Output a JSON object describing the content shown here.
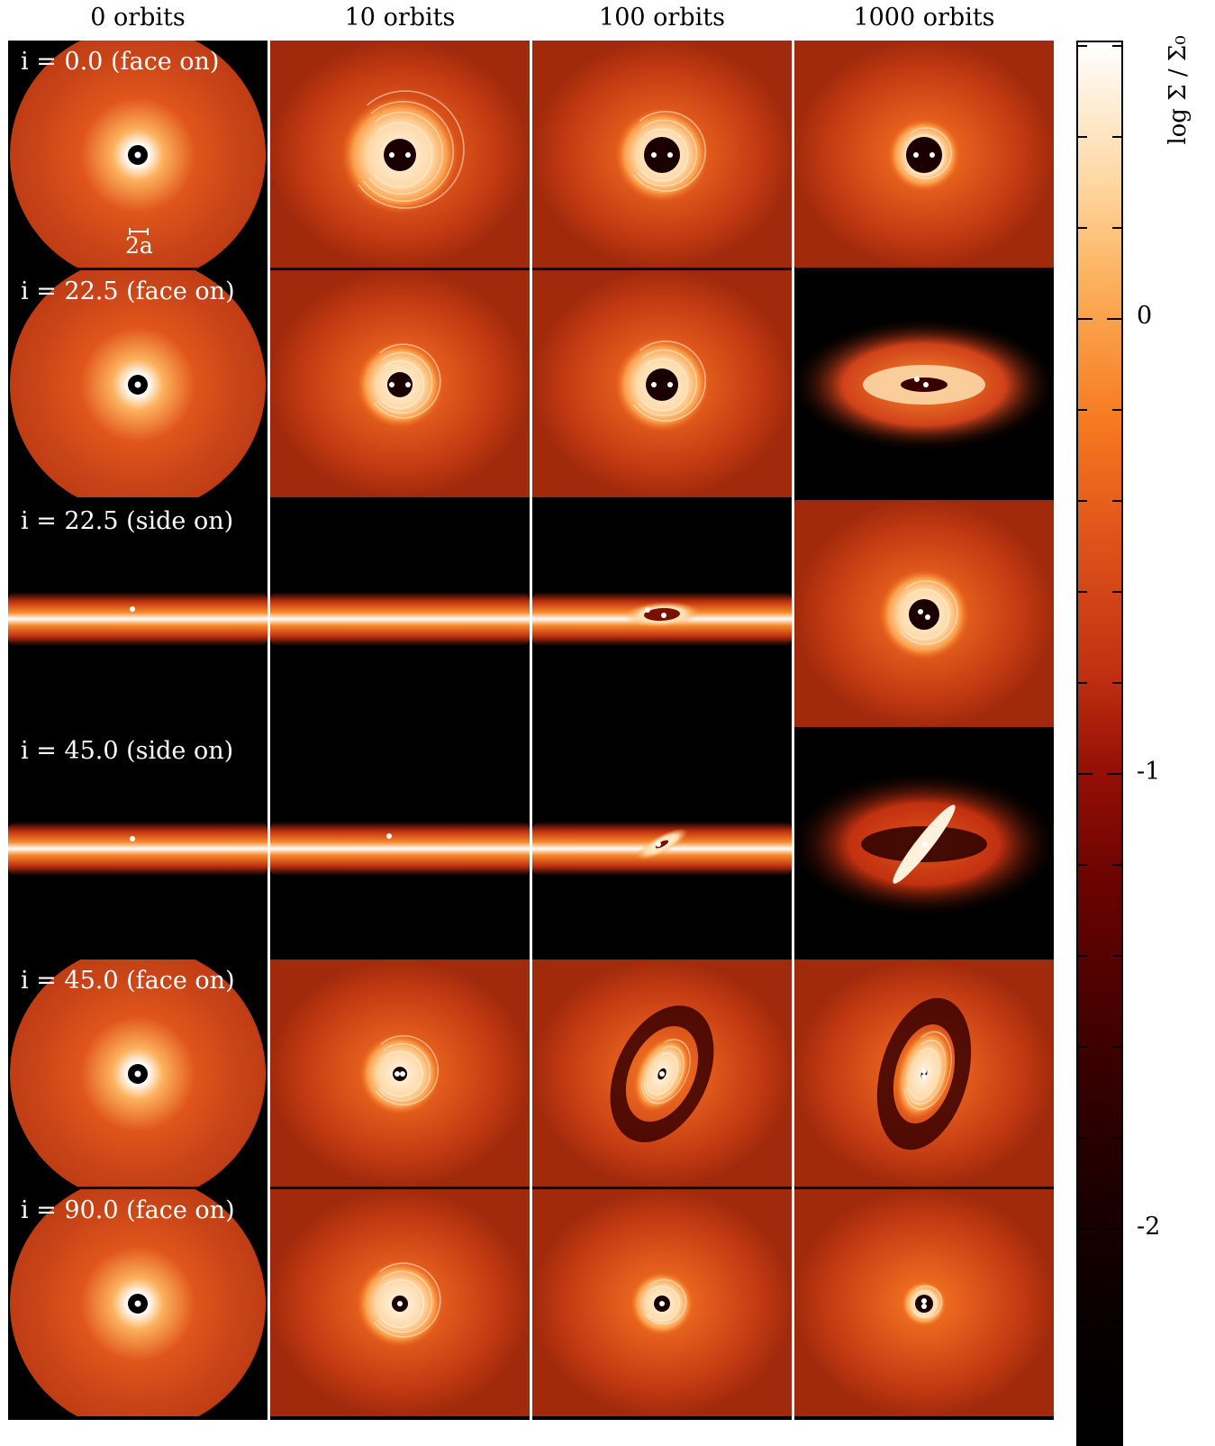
{
  "columns": [
    "0 orbits",
    "10 orbits",
    "100 orbits",
    "1000 orbits"
  ],
  "rows": [
    {
      "label": "i = 0.0 (face on)"
    },
    {
      "label": "i = 22.5 (face on)"
    },
    {
      "label": "i = 22.5 (side on)"
    },
    {
      "label": "i = 45.0 (side on)"
    },
    {
      "label": "i = 45.0 (face on)"
    },
    {
      "label": "i = 90.0 (face on)"
    }
  ],
  "scale_bar_label": "2a",
  "colorbar": {
    "label": "log Σ / Σ₀",
    "tick_labels": [
      "0",
      "-1",
      "-2"
    ],
    "colors": [
      "#ffffff",
      "#fcb15d",
      "#f67a1f",
      "#c13010",
      "#6a0300",
      "#000000"
    ]
  }
}
